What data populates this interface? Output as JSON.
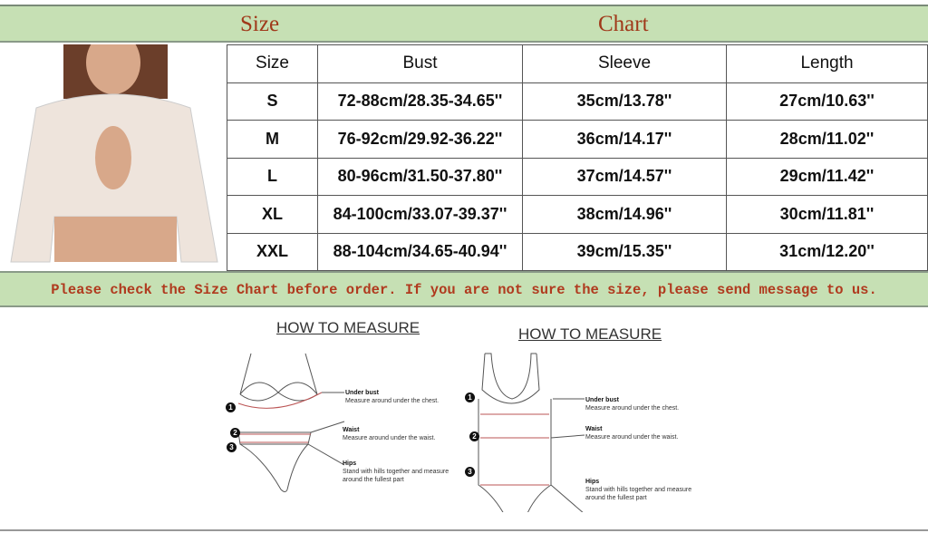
{
  "header": {
    "left": "Size",
    "right": "Chart"
  },
  "table": {
    "columns": [
      "Size",
      "Bust",
      "Sleeve",
      "Length"
    ],
    "rows": [
      [
        "S",
        "72-88cm/28.35-34.65''",
        "35cm/13.78''",
        "27cm/10.63''"
      ],
      [
        "M",
        "76-92cm/29.92-36.22''",
        "36cm/14.17''",
        "28cm/11.02''"
      ],
      [
        "L",
        "80-96cm/31.50-37.80''",
        "37cm/14.57''",
        "29cm/11.42''"
      ],
      [
        "XL",
        "84-100cm/33.07-39.37''",
        "38cm/14.96''",
        "30cm/11.81''"
      ],
      [
        "XXL",
        "88-104cm/34.65-40.94''",
        "39cm/15.35''",
        "31cm/12.20''"
      ]
    ]
  },
  "notice": "Please check the Size Chart before order. If you are not sure the size, please send message to us.",
  "guides": [
    {
      "title": "HOW TO MEASURE",
      "items": [
        {
          "num": "1",
          "label": "Under bust",
          "desc": "Measure around under the chest."
        },
        {
          "num": "2",
          "label": "Waist",
          "desc": "Measure around under the waist."
        },
        {
          "num": "3",
          "label": "Hips",
          "desc": "Stand with hills together and measure around  the fullest part"
        }
      ]
    },
    {
      "title": "HOW TO MEASURE",
      "items": [
        {
          "num": "1",
          "label": "Under bust",
          "desc": "Measure around under the chest."
        },
        {
          "num": "2",
          "label": "Waist",
          "desc": "Measure around under the waist."
        },
        {
          "num": "3",
          "label": "Hips",
          "desc": "Stand with hills together and measure around  the fullest part"
        }
      ]
    }
  ],
  "colors": {
    "header_bg": "#c6e0b4",
    "header_text": "#a0391a",
    "notice_text": "#b03a1e"
  }
}
